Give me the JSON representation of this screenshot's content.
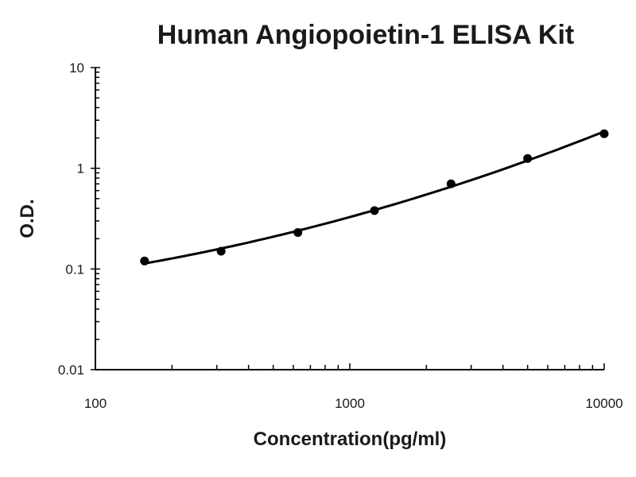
{
  "chart_data": {
    "type": "scatter",
    "title": "Human Angiopoietin-1 ELISA Kit",
    "xlabel": "Concentration(pg/ml)",
    "ylabel": "O.D.",
    "xscale": "log",
    "yscale": "log",
    "xlim": [
      100,
      10000
    ],
    "ylim": [
      0.01,
      10
    ],
    "x_ticks": [
      100,
      1000,
      10000
    ],
    "x_tick_labels": [
      "100",
      "1000",
      "10000"
    ],
    "y_ticks": [
      0.01,
      0.1,
      1,
      10
    ],
    "y_tick_labels": [
      "0.01",
      "0.1",
      "1",
      "10"
    ],
    "grid": false,
    "series": [
      {
        "x": [
          156,
          312,
          625,
          1250,
          2500,
          5000,
          10000
        ],
        "y": [
          0.12,
          0.15,
          0.23,
          0.38,
          0.7,
          1.25,
          2.2
        ],
        "fit_line": true
      }
    ],
    "colors": {
      "marks": "#000000",
      "text": "#1a1a1a"
    }
  }
}
